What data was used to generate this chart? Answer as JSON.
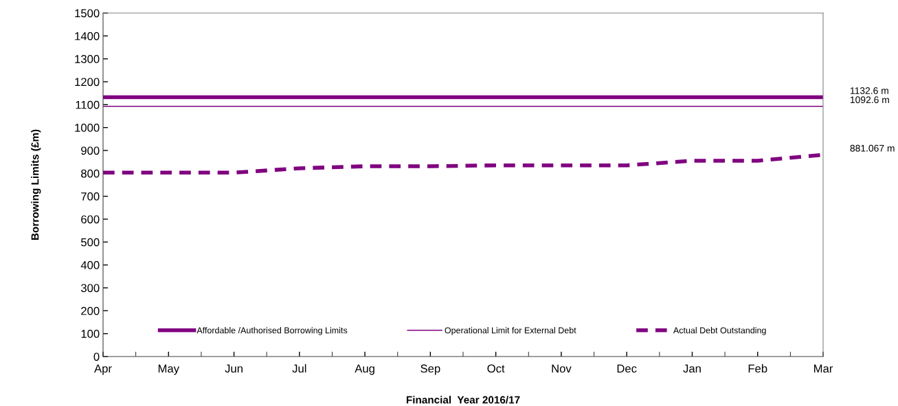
{
  "chart_data": {
    "type": "line",
    "xlabel": "Financial  Year 2016/17",
    "ylabel": "Borrowing Limits (£m)",
    "categories": [
      "Apr",
      "May",
      "Jun",
      "Jul",
      "Aug",
      "Sep",
      "Oct",
      "Nov",
      "Dec",
      "Jan",
      "Feb",
      "Mar"
    ],
    "series": [
      {
        "name": "Affordable /Authorised Borrowing Limits",
        "color": "#800080",
        "line_style": "solid",
        "values": [
          1132.6,
          1132.6,
          1132.6,
          1132.6,
          1132.6,
          1132.6,
          1132.6,
          1132.6,
          1132.6,
          1132.6,
          1132.6,
          1132.6
        ]
      },
      {
        "name": "Operational Limit for External Debt",
        "color": "#800080",
        "line_style": "solid",
        "values": [
          1092.6,
          1092.6,
          1092.6,
          1092.6,
          1092.6,
          1092.6,
          1092.6,
          1092.6,
          1092.6,
          1092.6,
          1092.6,
          1092.6
        ]
      },
      {
        "name": "Actual Debt Outstanding",
        "color": "#800080",
        "line_style": "dashed",
        "values": [
          803,
          803,
          803,
          822,
          831,
          831,
          835,
          835,
          835,
          855,
          855,
          881.067
        ]
      }
    ],
    "ylim": [
      0,
      1500
    ],
    "yticks": [
      0,
      100,
      200,
      300,
      400,
      500,
      600,
      700,
      800,
      900,
      1000,
      1100,
      1200,
      1300,
      1400,
      1500
    ],
    "grid": false,
    "legend": "bottom",
    "marker": "none",
    "annotations": [
      "1132.6 m",
      "1092.6 m",
      "881.067 m"
    ]
  }
}
